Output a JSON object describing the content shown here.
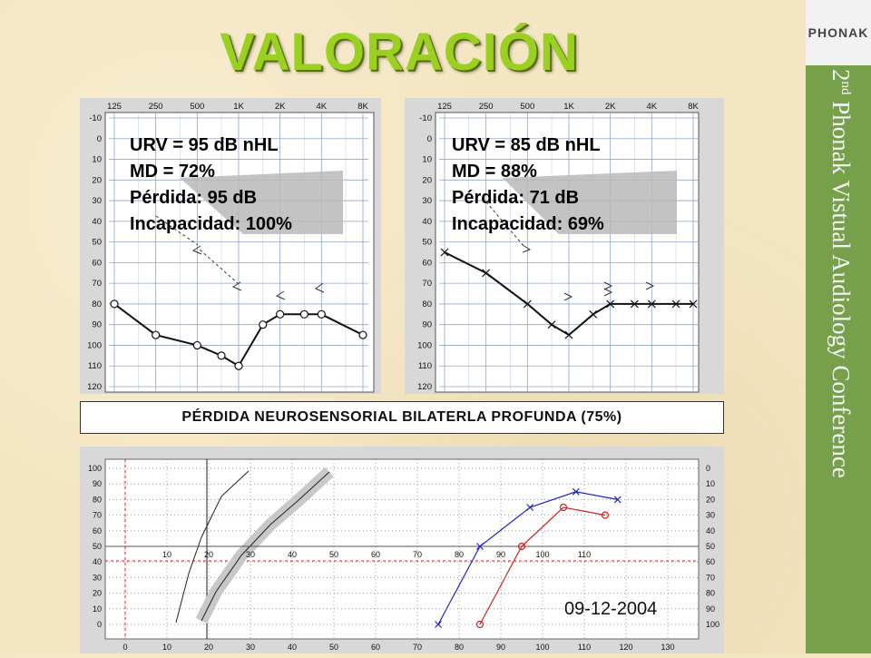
{
  "brand": {
    "logo": "PHONAK"
  },
  "conference": {
    "ordinal": "2",
    "ordinal_suffix": "nd",
    "name": "Phonak Vistual Audiology Conference"
  },
  "title": "VALORACIÓN",
  "audiogram_left": {
    "stats": [
      "URV = 95 dB nHL",
      "MD = 72%",
      "Pérdida: 95 dB",
      "Incapacidad: 100%"
    ]
  },
  "audiogram_right": {
    "stats": [
      "URV = 85 dB nHL",
      "MD = 88%",
      "Pérdida: 71 dB",
      "Incapacidad: 69%"
    ]
  },
  "diagnosis": "PÉRDIDA NEUROSENSORIAL BILATERLA PROFUNDA (75%)",
  "date": "09-12-2004",
  "colors": {
    "title": "#9ad121",
    "sidebar": "#76a04a",
    "background": "#f4e6c2",
    "right_ear": "#cc2222",
    "left_ear": "#2222cc",
    "grid_ref": "#cc2222"
  },
  "chart_data": [
    {
      "type": "line",
      "title": "",
      "x_tick_labels": [
        "125",
        "250",
        "500",
        "1K",
        "2K",
        "4K",
        "8K"
      ],
      "y_tick_labels": [
        "-10",
        "0",
        "10",
        "20",
        "30",
        "40",
        "50",
        "60",
        "70",
        "80",
        "90",
        "100",
        "110",
        "120"
      ],
      "y_inverted": true,
      "series": [
        {
          "x": [
            "125",
            "250",
            "500",
            "750",
            "1K",
            "1.5K",
            "2K",
            "3K",
            "4K",
            "8K"
          ],
          "values": [
            80,
            95,
            100,
            105,
            110,
            90,
            85,
            85,
            85,
            95
          ],
          "marker": "circle"
        }
      ]
    },
    {
      "type": "line",
      "title": "",
      "x_tick_labels": [
        "125",
        "250",
        "500",
        "1K",
        "2K",
        "4K",
        "8K"
      ],
      "y_tick_labels": [
        "-10",
        "0",
        "10",
        "20",
        "30",
        "40",
        "50",
        "60",
        "70",
        "80",
        "90",
        "100",
        "110",
        "120"
      ],
      "y_inverted": true,
      "series": [
        {
          "x": [
            "125",
            "250",
            "500",
            "750",
            "1K",
            "1.5K",
            "2K",
            "3K",
            "4K",
            "6K",
            "8K"
          ],
          "values": [
            55,
            65,
            80,
            90,
            95,
            85,
            80,
            80,
            80,
            80,
            80
          ],
          "marker": "x"
        }
      ]
    },
    {
      "type": "line",
      "title": "",
      "x_tick_labels": [
        "0",
        "10",
        "20",
        "30",
        "40",
        "50",
        "60",
        "70",
        "80",
        "90",
        "100",
        "110",
        "120",
        "130"
      ],
      "y_left_tick_labels": [
        "100",
        "90",
        "80",
        "70",
        "60",
        "50",
        "40",
        "30",
        "20",
        "10",
        "0"
      ],
      "y_right_tick_labels": [
        "0",
        "10",
        "20",
        "30",
        "40",
        "50",
        "60",
        "70",
        "80",
        "90",
        "100"
      ],
      "series": [
        {
          "x": [
            85,
            95,
            105,
            115
          ],
          "values": [
            0,
            50,
            75,
            70
          ],
          "marker": "circle",
          "color": "#cc2222"
        },
        {
          "x": [
            75,
            85,
            97,
            108,
            118
          ],
          "values": [
            0,
            50,
            75,
            85,
            80
          ],
          "marker": "x",
          "color": "#2222cc"
        }
      ]
    }
  ]
}
